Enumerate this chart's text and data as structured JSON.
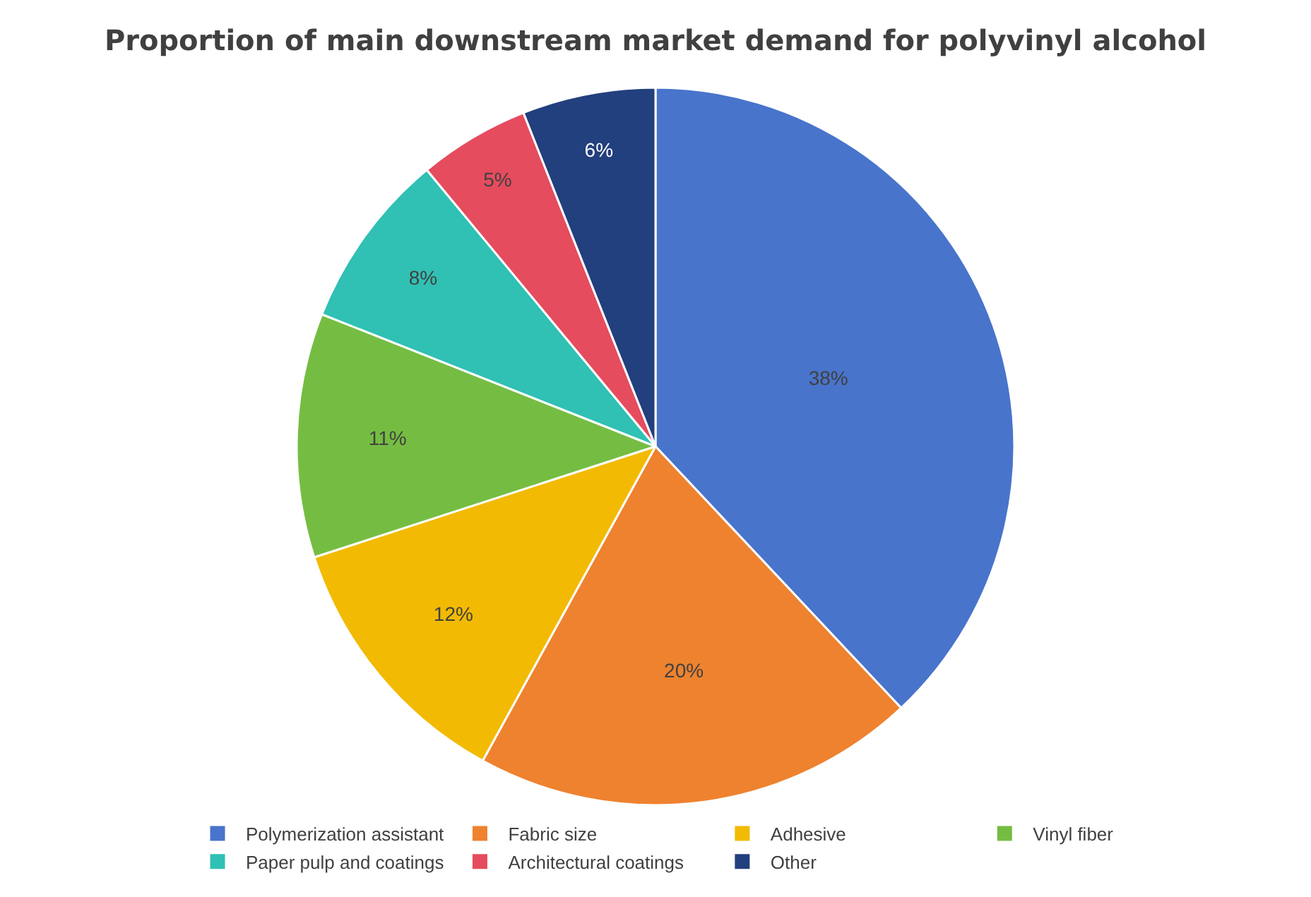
{
  "chart_data": {
    "type": "pie",
    "title": "Proportion of main downstream market demand for polyvinyl alcohol",
    "categories": [
      "Polymerization assistant",
      "Fabric size",
      "Adhesive",
      "Vinyl fiber",
      "Paper pulp and coatings",
      "Architectural coatings",
      "Other"
    ],
    "values": [
      38,
      20,
      12,
      11,
      8,
      5,
      6
    ],
    "value_labels": [
      "38%",
      "20%",
      "12%",
      "11%",
      "8%",
      "5%",
      "6%"
    ],
    "colors": [
      "#4874cb",
      "#ee822f",
      "#f2ba02",
      "#75bd42",
      "#30c0b4",
      "#e54c5e",
      "#223f7e"
    ],
    "legend": "bottom"
  }
}
